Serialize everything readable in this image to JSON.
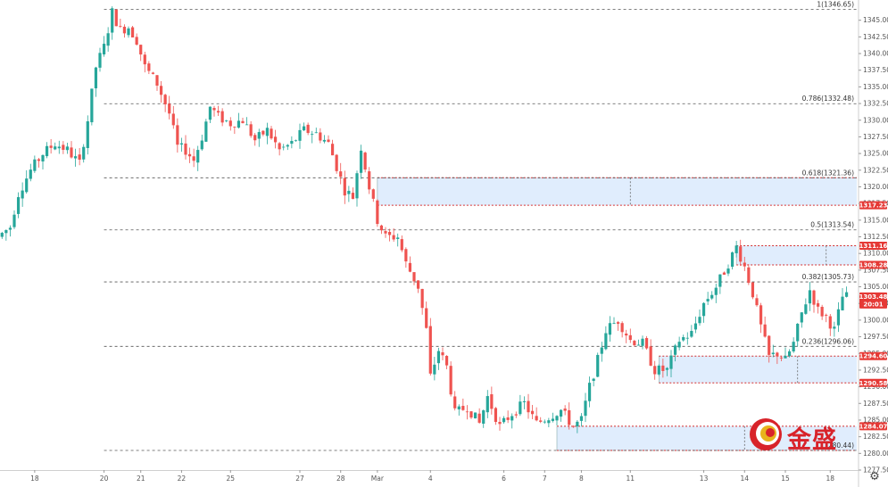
{
  "chart_data": {
    "type": "candlestick",
    "y_range": [
      1277.5,
      1347.5
    ],
    "y_ticks": [
      "1345.00",
      "1342.50",
      "1340.00",
      "1337.50",
      "1335.00",
      "1332.50",
      "1330.00",
      "1327.50",
      "1325.00",
      "1322.50",
      "1320.00",
      "1317.50",
      "1315.00",
      "1312.50",
      "1310.00",
      "1307.50",
      "1305.00",
      "1302.50",
      "1300.00",
      "1297.50",
      "1295.00",
      "1292.50",
      "1290.00",
      "1287.50",
      "1285.00",
      "1282.50",
      "1280.00",
      "1277.50"
    ],
    "x_ticks": [
      {
        "label": "18",
        "slot": 8
      },
      {
        "label": "20",
        "slot": 25
      },
      {
        "label": "21",
        "slot": 34
      },
      {
        "label": "22",
        "slot": 44
      },
      {
        "label": "25",
        "slot": 56
      },
      {
        "label": "27",
        "slot": 73
      },
      {
        "label": "28",
        "slot": 83
      },
      {
        "label": "Mar",
        "slot": 92
      },
      {
        "label": "4",
        "slot": 105
      },
      {
        "label": "6",
        "slot": 123
      },
      {
        "label": "7",
        "slot": 133
      },
      {
        "label": "8",
        "slot": 142
      },
      {
        "label": "11",
        "slot": 154
      },
      {
        "label": "13",
        "slot": 172
      },
      {
        "label": "14",
        "slot": 182
      },
      {
        "label": "15",
        "slot": 192
      },
      {
        "label": "18",
        "slot": 203
      }
    ],
    "fib_levels": [
      {
        "label": "1(1346.65)",
        "price": 1346.65
      },
      {
        "label": "0.786(1332.48)",
        "price": 1332.48
      },
      {
        "label": "0.618(1321.36)",
        "price": 1321.36
      },
      {
        "label": "0.5(1313.54)",
        "price": 1313.54
      },
      {
        "label": "0.382(1305.73)",
        "price": 1305.73
      },
      {
        "label": "0.236(1296.06)",
        "price": 1296.06
      },
      {
        "label": "(1280.44)",
        "price": 1280.44
      }
    ],
    "zones": [
      {
        "top": 1321.36,
        "bottom": 1317.23,
        "from_slot": 92,
        "mid_slot": 154
      },
      {
        "top": 1311.16,
        "bottom": 1308.28,
        "from_slot": 180,
        "mid_slot": 202
      },
      {
        "top": 1294.6,
        "bottom": 1290.58,
        "from_slot": 161,
        "mid_slot": 195
      },
      {
        "top": 1284.07,
        "bottom": 1280.44,
        "from_slot": 136,
        "mid_slot": 182
      }
    ],
    "price_tags": [
      {
        "label": "1317.23",
        "price": 1317.23
      },
      {
        "label": "1311.16",
        "price": 1311.16
      },
      {
        "label": "1308.28",
        "price": 1308.28
      },
      {
        "label": "1303.48",
        "price": 1303.48,
        "sub": "20:01"
      },
      {
        "label": "1294.60",
        "price": 1294.6
      },
      {
        "label": "1290.58",
        "price": 1290.58
      },
      {
        "label": "1284.07",
        "price": 1284.07
      }
    ],
    "anchors": [
      [
        0,
        1312.5
      ],
      [
        3,
        1314.0
      ],
      [
        5,
        1319.0
      ],
      [
        8,
        1322.5
      ],
      [
        11,
        1325.0
      ],
      [
        14,
        1326.5
      ],
      [
        17,
        1325.5
      ],
      [
        20,
        1323.5
      ],
      [
        22,
        1330.0
      ],
      [
        24,
        1338.0
      ],
      [
        26,
        1341.0
      ],
      [
        28,
        1346.2
      ],
      [
        30,
        1343.5
      ],
      [
        32,
        1344.0
      ],
      [
        34,
        1342.0
      ],
      [
        36,
        1338.0
      ],
      [
        39,
        1335.5
      ],
      [
        42,
        1331.0
      ],
      [
        44,
        1326.0
      ],
      [
        46,
        1325.5
      ],
      [
        48,
        1324.0
      ],
      [
        50,
        1327.5
      ],
      [
        52,
        1332.0
      ],
      [
        54,
        1330.5
      ],
      [
        57,
        1329.5
      ],
      [
        60,
        1330.0
      ],
      [
        63,
        1327.0
      ],
      [
        66,
        1328.5
      ],
      [
        69,
        1325.5
      ],
      [
        72,
        1326.5
      ],
      [
        75,
        1328.5
      ],
      [
        78,
        1328.0
      ],
      [
        81,
        1326.5
      ],
      [
        83,
        1323.0
      ],
      [
        85,
        1319.5
      ],
      [
        87,
        1318.5
      ],
      [
        89,
        1326.0
      ],
      [
        91,
        1320.0
      ],
      [
        93,
        1315.0
      ],
      [
        95,
        1312.5
      ],
      [
        98,
        1312.5
      ],
      [
        100,
        1308.5
      ],
      [
        103,
        1305.0
      ],
      [
        105,
        1298.5
      ],
      [
        106,
        1291.5
      ],
      [
        108,
        1295.5
      ],
      [
        110,
        1293.0
      ],
      [
        112,
        1286.0
      ],
      [
        115,
        1287.0
      ],
      [
        118,
        1284.5
      ],
      [
        120,
        1288.5
      ],
      [
        123,
        1284.0
      ],
      [
        126,
        1286.0
      ],
      [
        129,
        1287.5
      ],
      [
        132,
        1284.5
      ],
      [
        135,
        1285.5
      ],
      [
        138,
        1286.5
      ],
      [
        141,
        1284.0
      ],
      [
        143,
        1285.0
      ],
      [
        145,
        1290.0
      ],
      [
        147,
        1294.0
      ],
      [
        149,
        1298.5
      ],
      [
        152,
        1300.0
      ],
      [
        155,
        1297.0
      ],
      [
        158,
        1296.5
      ],
      [
        161,
        1292.5
      ],
      [
        164,
        1292.5
      ],
      [
        167,
        1297.0
      ],
      [
        170,
        1298.0
      ],
      [
        173,
        1302.5
      ],
      [
        176,
        1305.0
      ],
      [
        179,
        1308.5
      ],
      [
        181,
        1311.0
      ],
      [
        183,
        1308.0
      ],
      [
        185,
        1304.0
      ],
      [
        187,
        1299.0
      ],
      [
        189,
        1294.5
      ],
      [
        191,
        1295.0
      ],
      [
        193,
        1294.0
      ],
      [
        195,
        1296.5
      ],
      [
        197,
        1301.0
      ],
      [
        199,
        1304.5
      ],
      [
        201,
        1301.5
      ],
      [
        203,
        1300.5
      ],
      [
        205,
        1298.5
      ],
      [
        207,
        1303.5
      ]
    ]
  },
  "logo": {
    "text": "金盛",
    "accent": "#d8232a"
  },
  "colors": {
    "up": "#26a69a",
    "down": "#ef5350",
    "zone_fill": "#dbeafd",
    "zone_border": "#d32f2f",
    "fib": "#555555",
    "tag": "#e53935"
  },
  "controls": {
    "settings_icon": "gear-icon"
  }
}
